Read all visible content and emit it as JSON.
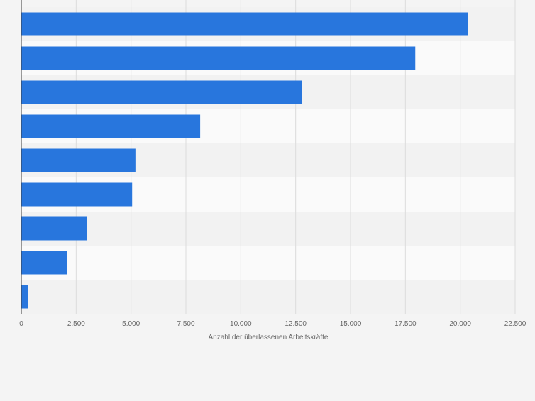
{
  "chart_data": {
    "type": "bar",
    "orientation": "horizontal",
    "title": "",
    "xlabel": "Anzahl der überlassenen Arbeitskräfte",
    "ylabel": "",
    "xlim": [
      0,
      22500
    ],
    "x_ticks": [
      0,
      2500,
      5000,
      7500,
      10000,
      12500,
      15000,
      17500,
      20000,
      22500
    ],
    "x_tick_labels": [
      "0",
      "2.500",
      "5.000",
      "7.500",
      "10.000",
      "12.500",
      "15.000",
      "17.500",
      "20.000",
      "22.500"
    ],
    "categories": [
      "",
      "",
      "",
      "",
      "",
      "",
      "",
      "",
      ""
    ],
    "values": [
      20350,
      17950,
      12800,
      8150,
      5200,
      5050,
      3000,
      2100,
      300
    ],
    "bar_color": "#2876dd",
    "grid": true,
    "legend": "none"
  }
}
